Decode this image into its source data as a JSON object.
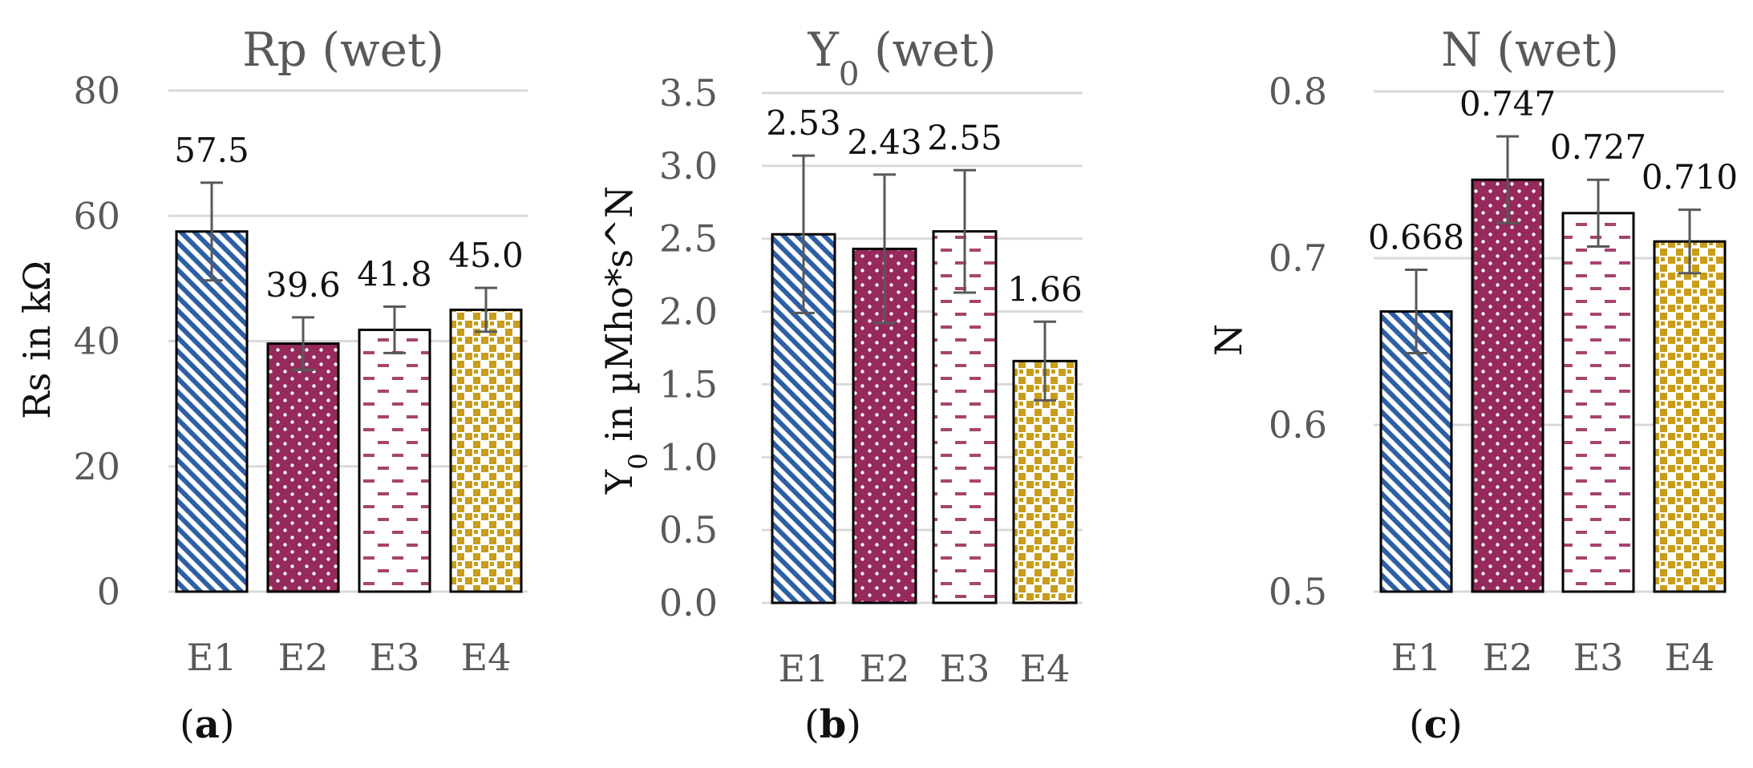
{
  "colors": {
    "E1": "#2f5fa3",
    "E2": "#962a5c",
    "E3": "#a84370",
    "E4": "#c99d1a",
    "grid": "#d9d9d9",
    "errorbar": "#595959"
  },
  "patterns": {
    "E1": "diagonal-stripes",
    "E2": "white-dots",
    "E3": "dashes-on-white",
    "E4": "checker-squares"
  },
  "chart_data": [
    {
      "type": "bar",
      "panel": "(a)",
      "panel_letter": "a",
      "title": "Rp (wet)",
      "ylabel": "Rs in kΩ",
      "categories": [
        "E1",
        "E2",
        "E3",
        "E4"
      ],
      "values": [
        57.5,
        39.6,
        41.8,
        45.0
      ],
      "value_labels": [
        "57.5",
        "39.6",
        "41.8",
        "45.0"
      ],
      "error": [
        7.8,
        4.2,
        3.7,
        3.5
      ],
      "ylim": [
        0,
        80
      ],
      "yticks": [
        0,
        20,
        40,
        60,
        80
      ],
      "ytick_labels": [
        "0",
        "20",
        "40",
        "60",
        "80"
      ],
      "grid": true
    },
    {
      "type": "bar",
      "panel": "(b)",
      "panel_letter": "b",
      "title": "Y0 (wet)",
      "ylabel": "Y0 in µMho*s^N",
      "categories": [
        "E1",
        "E2",
        "E3",
        "E4"
      ],
      "values": [
        2.53,
        2.43,
        2.55,
        1.66
      ],
      "value_labels": [
        "2.53",
        "2.43",
        "2.55",
        "1.66"
      ],
      "error": [
        0.54,
        0.51,
        0.42,
        0.27
      ],
      "ylim": [
        0,
        3.5
      ],
      "yticks": [
        0,
        0.5,
        1.0,
        1.5,
        2.0,
        2.5,
        3.0,
        3.5
      ],
      "ytick_labels": [
        "0.0",
        "0.5",
        "1.0",
        "1.5",
        "2.0",
        "2.5",
        "3.0",
        "3.5"
      ],
      "grid": true
    },
    {
      "type": "bar",
      "panel": "(c)",
      "panel_letter": "c",
      "title": "N (wet)",
      "ylabel": "N",
      "categories": [
        "E1",
        "E2",
        "E3",
        "E4"
      ],
      "values": [
        0.668,
        0.747,
        0.727,
        0.71
      ],
      "value_labels": [
        "0.668",
        "0.747",
        "0.727",
        "0.710"
      ],
      "error": [
        0.025,
        0.026,
        0.02,
        0.019
      ],
      "ylim": [
        0.5,
        0.8
      ],
      "yticks": [
        0.5,
        0.6,
        0.7,
        0.8
      ],
      "ytick_labels": [
        "0.5",
        "0.6",
        "0.7",
        "0.8"
      ],
      "grid": true
    }
  ]
}
